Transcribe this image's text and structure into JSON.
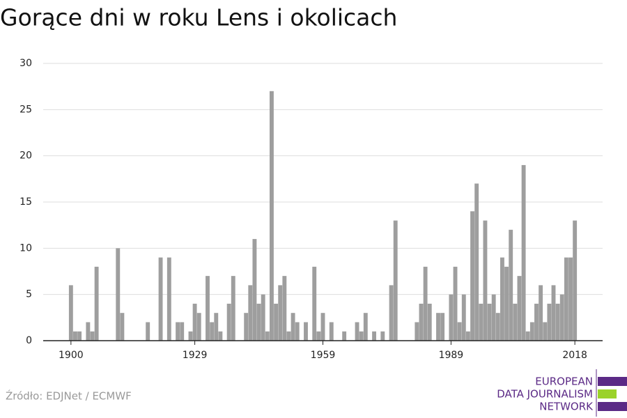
{
  "chart_data": {
    "type": "bar",
    "title": "Gorące dni w roku Lens i okolicach",
    "x": [
      1900,
      1901,
      1902,
      1903,
      1904,
      1905,
      1906,
      1907,
      1908,
      1909,
      1910,
      1911,
      1912,
      1913,
      1914,
      1915,
      1916,
      1917,
      1918,
      1919,
      1920,
      1921,
      1922,
      1923,
      1924,
      1925,
      1926,
      1927,
      1928,
      1929,
      1930,
      1931,
      1932,
      1933,
      1934,
      1935,
      1936,
      1937,
      1938,
      1939,
      1940,
      1941,
      1942,
      1943,
      1944,
      1945,
      1946,
      1947,
      1948,
      1949,
      1950,
      1951,
      1952,
      1953,
      1954,
      1955,
      1956,
      1957,
      1958,
      1959,
      1960,
      1961,
      1962,
      1963,
      1964,
      1965,
      1966,
      1967,
      1968,
      1969,
      1970,
      1971,
      1972,
      1973,
      1974,
      1975,
      1976,
      1977,
      1978,
      1979,
      1980,
      1981,
      1982,
      1983,
      1984,
      1985,
      1986,
      1987,
      1988,
      1989,
      1990,
      1991,
      1992,
      1993,
      1994,
      1995,
      1996,
      1997,
      1998,
      1999,
      2000,
      2001,
      2002,
      2003,
      2004,
      2005,
      2006,
      2007,
      2008,
      2009,
      2010,
      2011,
      2012,
      2013,
      2014,
      2015,
      2016,
      2017,
      2018
    ],
    "values": [
      6,
      1,
      1,
      0,
      2,
      1,
      8,
      0,
      0,
      0,
      0,
      10,
      3,
      0,
      0,
      0,
      0,
      0,
      2,
      0,
      0,
      9,
      0,
      9,
      0,
      2,
      2,
      0,
      1,
      4,
      3,
      0,
      7,
      2,
      3,
      1,
      0,
      4,
      7,
      0,
      0,
      3,
      6,
      11,
      4,
      5,
      1,
      27,
      4,
      6,
      7,
      1,
      3,
      2,
      0,
      2,
      0,
      8,
      1,
      3,
      0,
      2,
      0,
      0,
      1,
      0,
      0,
      2,
      1,
      3,
      0,
      1,
      0,
      1,
      0,
      6,
      13,
      0,
      0,
      0,
      0,
      2,
      4,
      8,
      4,
      0,
      3,
      3,
      0,
      5,
      8,
      2,
      5,
      1,
      14,
      17,
      4,
      13,
      4,
      5,
      3,
      9,
      8,
      12,
      4,
      7,
      19,
      1,
      2,
      4,
      6,
      2,
      4,
      6,
      4,
      5,
      9,
      9,
      13
    ],
    "color": "#9e9e9e",
    "xlim": [
      1893.5,
      2024.5
    ],
    "xticks": [
      1900,
      1929,
      1959,
      1989,
      2018
    ],
    "ylim": [
      0,
      30
    ],
    "yticks": [
      0,
      5,
      10,
      15,
      20,
      25,
      30
    ],
    "grid": true
  },
  "source": "Źródło: EDJNet / ECMWF",
  "logo": {
    "line1": "EUROPEAN",
    "line2": "DATA JOURNALISM",
    "line3": "NETWORK"
  }
}
